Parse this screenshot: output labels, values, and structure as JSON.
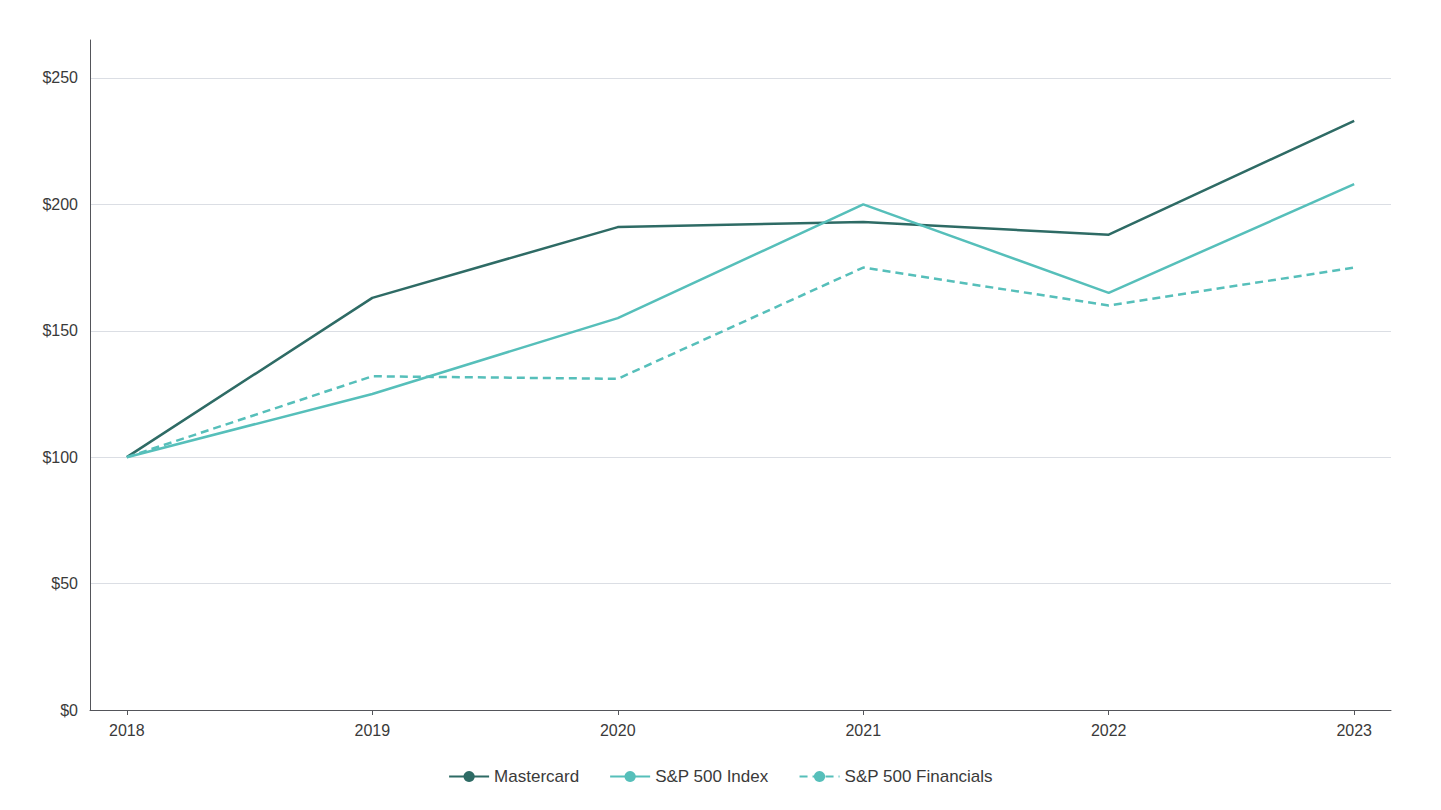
{
  "chart_data": {
    "type": "line",
    "x": [
      2018,
      2019,
      2020,
      2021,
      2022,
      2023
    ],
    "series": [
      {
        "name": "Mastercard",
        "color": "#2e6b65",
        "line_style": "solid",
        "values": [
          100,
          163,
          191,
          193,
          188,
          233
        ]
      },
      {
        "name": "S&P 500 Index",
        "color": "#56bfba",
        "line_style": "solid",
        "values": [
          100,
          125,
          155,
          200,
          165,
          208
        ]
      },
      {
        "name": "S&P 500 Financials",
        "color": "#56bfba",
        "line_style": "dashed",
        "values": [
          100,
          132,
          131,
          175,
          160,
          175
        ]
      }
    ],
    "xlim": [
      2017.85,
      2023.15
    ],
    "xticks": [
      2018,
      2019,
      2020,
      2021,
      2022,
      2023
    ],
    "ylim": [
      0,
      265
    ],
    "yticks": [
      {
        "value": 0,
        "label": "$0"
      },
      {
        "value": 50,
        "label": "$50"
      },
      {
        "value": 100,
        "label": "$100"
      },
      {
        "value": 150,
        "label": "$150"
      },
      {
        "value": 200,
        "label": "$200"
      },
      {
        "value": 250,
        "label": "$250"
      }
    ],
    "grid": true,
    "legend": "bottom"
  }
}
